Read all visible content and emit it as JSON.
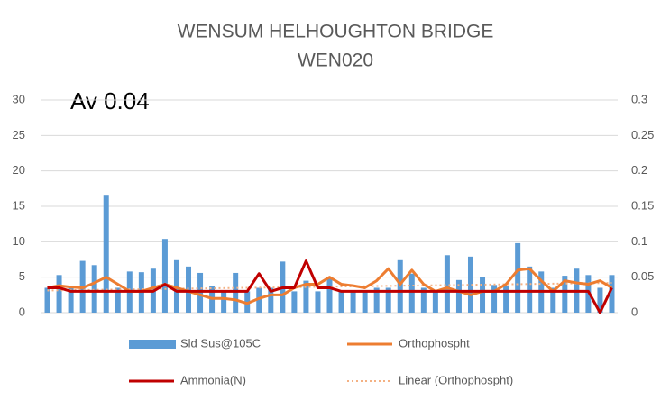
{
  "chart_data": {
    "type": "bar-line",
    "title": "WENSUM HELHOUGHTON BRIDGE",
    "subtitle": "WEN020",
    "annotation": "Av 0.04",
    "categories": [
      null,
      null,
      null,
      null,
      null,
      null,
      null,
      null,
      null,
      null,
      null,
      null,
      null,
      null,
      null,
      null,
      null,
      null,
      null,
      null,
      null,
      null,
      null,
      null,
      null,
      null,
      null,
      null,
      null,
      null,
      null,
      null,
      null,
      null,
      null,
      null,
      null,
      null,
      null,
      null,
      null,
      null,
      null,
      null,
      null,
      null,
      null,
      null,
      null
    ],
    "ylim": [
      0,
      30
    ],
    "yticks": [
      0,
      5,
      10,
      15,
      20,
      25,
      30
    ],
    "y2lim": [
      0,
      0.3
    ],
    "y2ticks": [
      0,
      0.05,
      0.1,
      0.15,
      0.2,
      0.25,
      0.3
    ],
    "grid": true,
    "legend": "bottom",
    "series": [
      {
        "name": "Sld Sus@105C",
        "kind": "bar",
        "color": "#5b9bd5",
        "values": [
          3.5,
          5.3,
          3.5,
          7.3,
          6.7,
          16.5,
          3.5,
          5.8,
          5.7,
          6.2,
          10.4,
          7.4,
          6.5,
          5.6,
          3.8,
          3.0,
          5.6,
          3.0,
          3.5,
          3.5,
          7.2,
          3.0,
          4.5,
          3.0,
          4.8,
          3.0,
          3.0,
          3.0,
          3.5,
          3.5,
          7.4,
          5.5,
          3.5,
          3.0,
          8.1,
          4.6,
          7.9,
          5.0,
          3.9,
          3.8,
          9.8,
          6.5,
          5.8,
          3.5,
          5.2,
          6.2,
          5.3,
          3.5,
          5.3
        ]
      },
      {
        "name": "Orthophospht",
        "kind": "line",
        "axis": "y2",
        "color": "#ed7d31",
        "values": [
          0.035,
          0.038,
          0.036,
          0.035,
          0.042,
          0.05,
          0.04,
          0.03,
          0.03,
          0.035,
          0.04,
          0.035,
          0.03,
          0.025,
          0.02,
          0.02,
          0.018,
          0.013,
          0.02,
          0.025,
          0.025,
          0.035,
          0.04,
          0.04,
          0.05,
          0.04,
          0.038,
          0.035,
          0.045,
          0.062,
          0.04,
          0.06,
          0.04,
          0.03,
          0.035,
          0.03,
          0.025,
          0.03,
          0.03,
          0.04,
          0.06,
          0.062,
          0.045,
          0.03,
          0.045,
          0.042,
          0.04,
          0.045,
          0.035
        ],
        "trendline": {
          "name": "Linear (Orthophospht)",
          "color": "#f4b183"
        }
      },
      {
        "name": "Ammonia(N)",
        "kind": "line",
        "axis": "y2",
        "color": "#c00000",
        "values": [
          0.035,
          0.035,
          0.03,
          0.03,
          0.03,
          0.03,
          0.03,
          0.03,
          0.03,
          0.03,
          0.04,
          0.03,
          0.03,
          0.03,
          0.03,
          0.03,
          0.03,
          0.03,
          0.055,
          0.03,
          0.035,
          0.035,
          0.073,
          0.035,
          0.035,
          0.03,
          0.03,
          0.03,
          0.03,
          0.03,
          0.03,
          0.03,
          0.03,
          0.03,
          0.03,
          0.03,
          0.03,
          0.03,
          0.03,
          0.03,
          0.03,
          0.03,
          0.03,
          0.03,
          0.03,
          0.03,
          0.03,
          0.0,
          0.035
        ]
      }
    ]
  }
}
